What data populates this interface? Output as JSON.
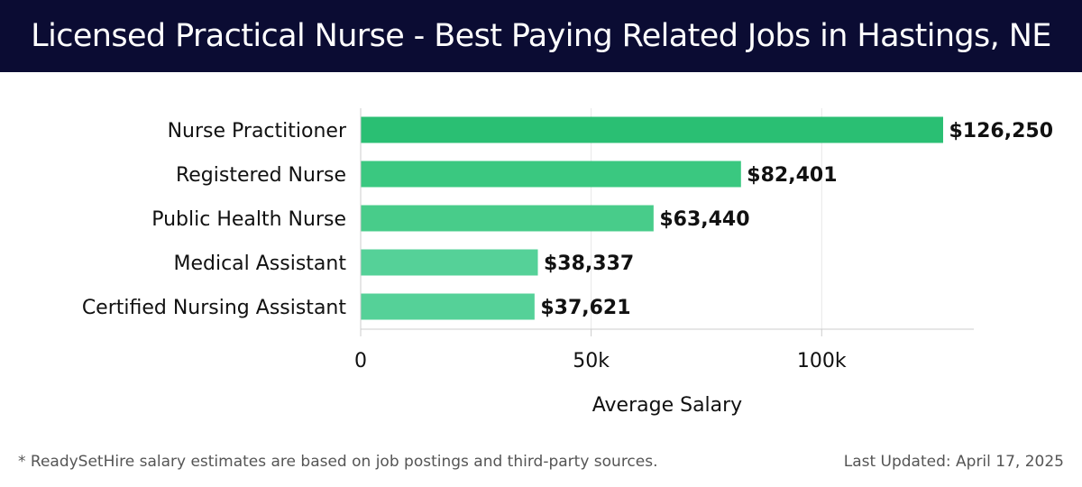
{
  "header": {
    "title": "Licensed Practical Nurse - Best Paying Related Jobs in Hastings, NE"
  },
  "chart_data": {
    "type": "bar",
    "orientation": "horizontal",
    "title": "Licensed Practical Nurse - Best Paying Related Jobs in Hastings, NE",
    "xlabel": "Average Salary",
    "ylabel": "",
    "categories": [
      "Nurse Practitioner",
      "Registered Nurse",
      "Public Health Nurse",
      "Medical Assistant",
      "Certified Nursing Assistant"
    ],
    "values": [
      126250,
      82401,
      63440,
      38337,
      37621
    ],
    "value_labels": [
      "$126,250",
      "$82,401",
      "$63,440",
      "$38,337",
      "$37,621"
    ],
    "bar_colors": [
      "#2abf73",
      "#3ac880",
      "#48cc8a",
      "#55d198",
      "#55d198"
    ],
    "xlim": [
      0,
      133000
    ],
    "xticks": [
      0,
      50000,
      100000
    ],
    "xtick_labels": [
      "0",
      "50k",
      "100k"
    ],
    "grid": true
  },
  "footer": {
    "note": "* ReadySetHire salary estimates are based on job postings and third-party sources.",
    "updated": "Last Updated: April 17, 2025"
  }
}
